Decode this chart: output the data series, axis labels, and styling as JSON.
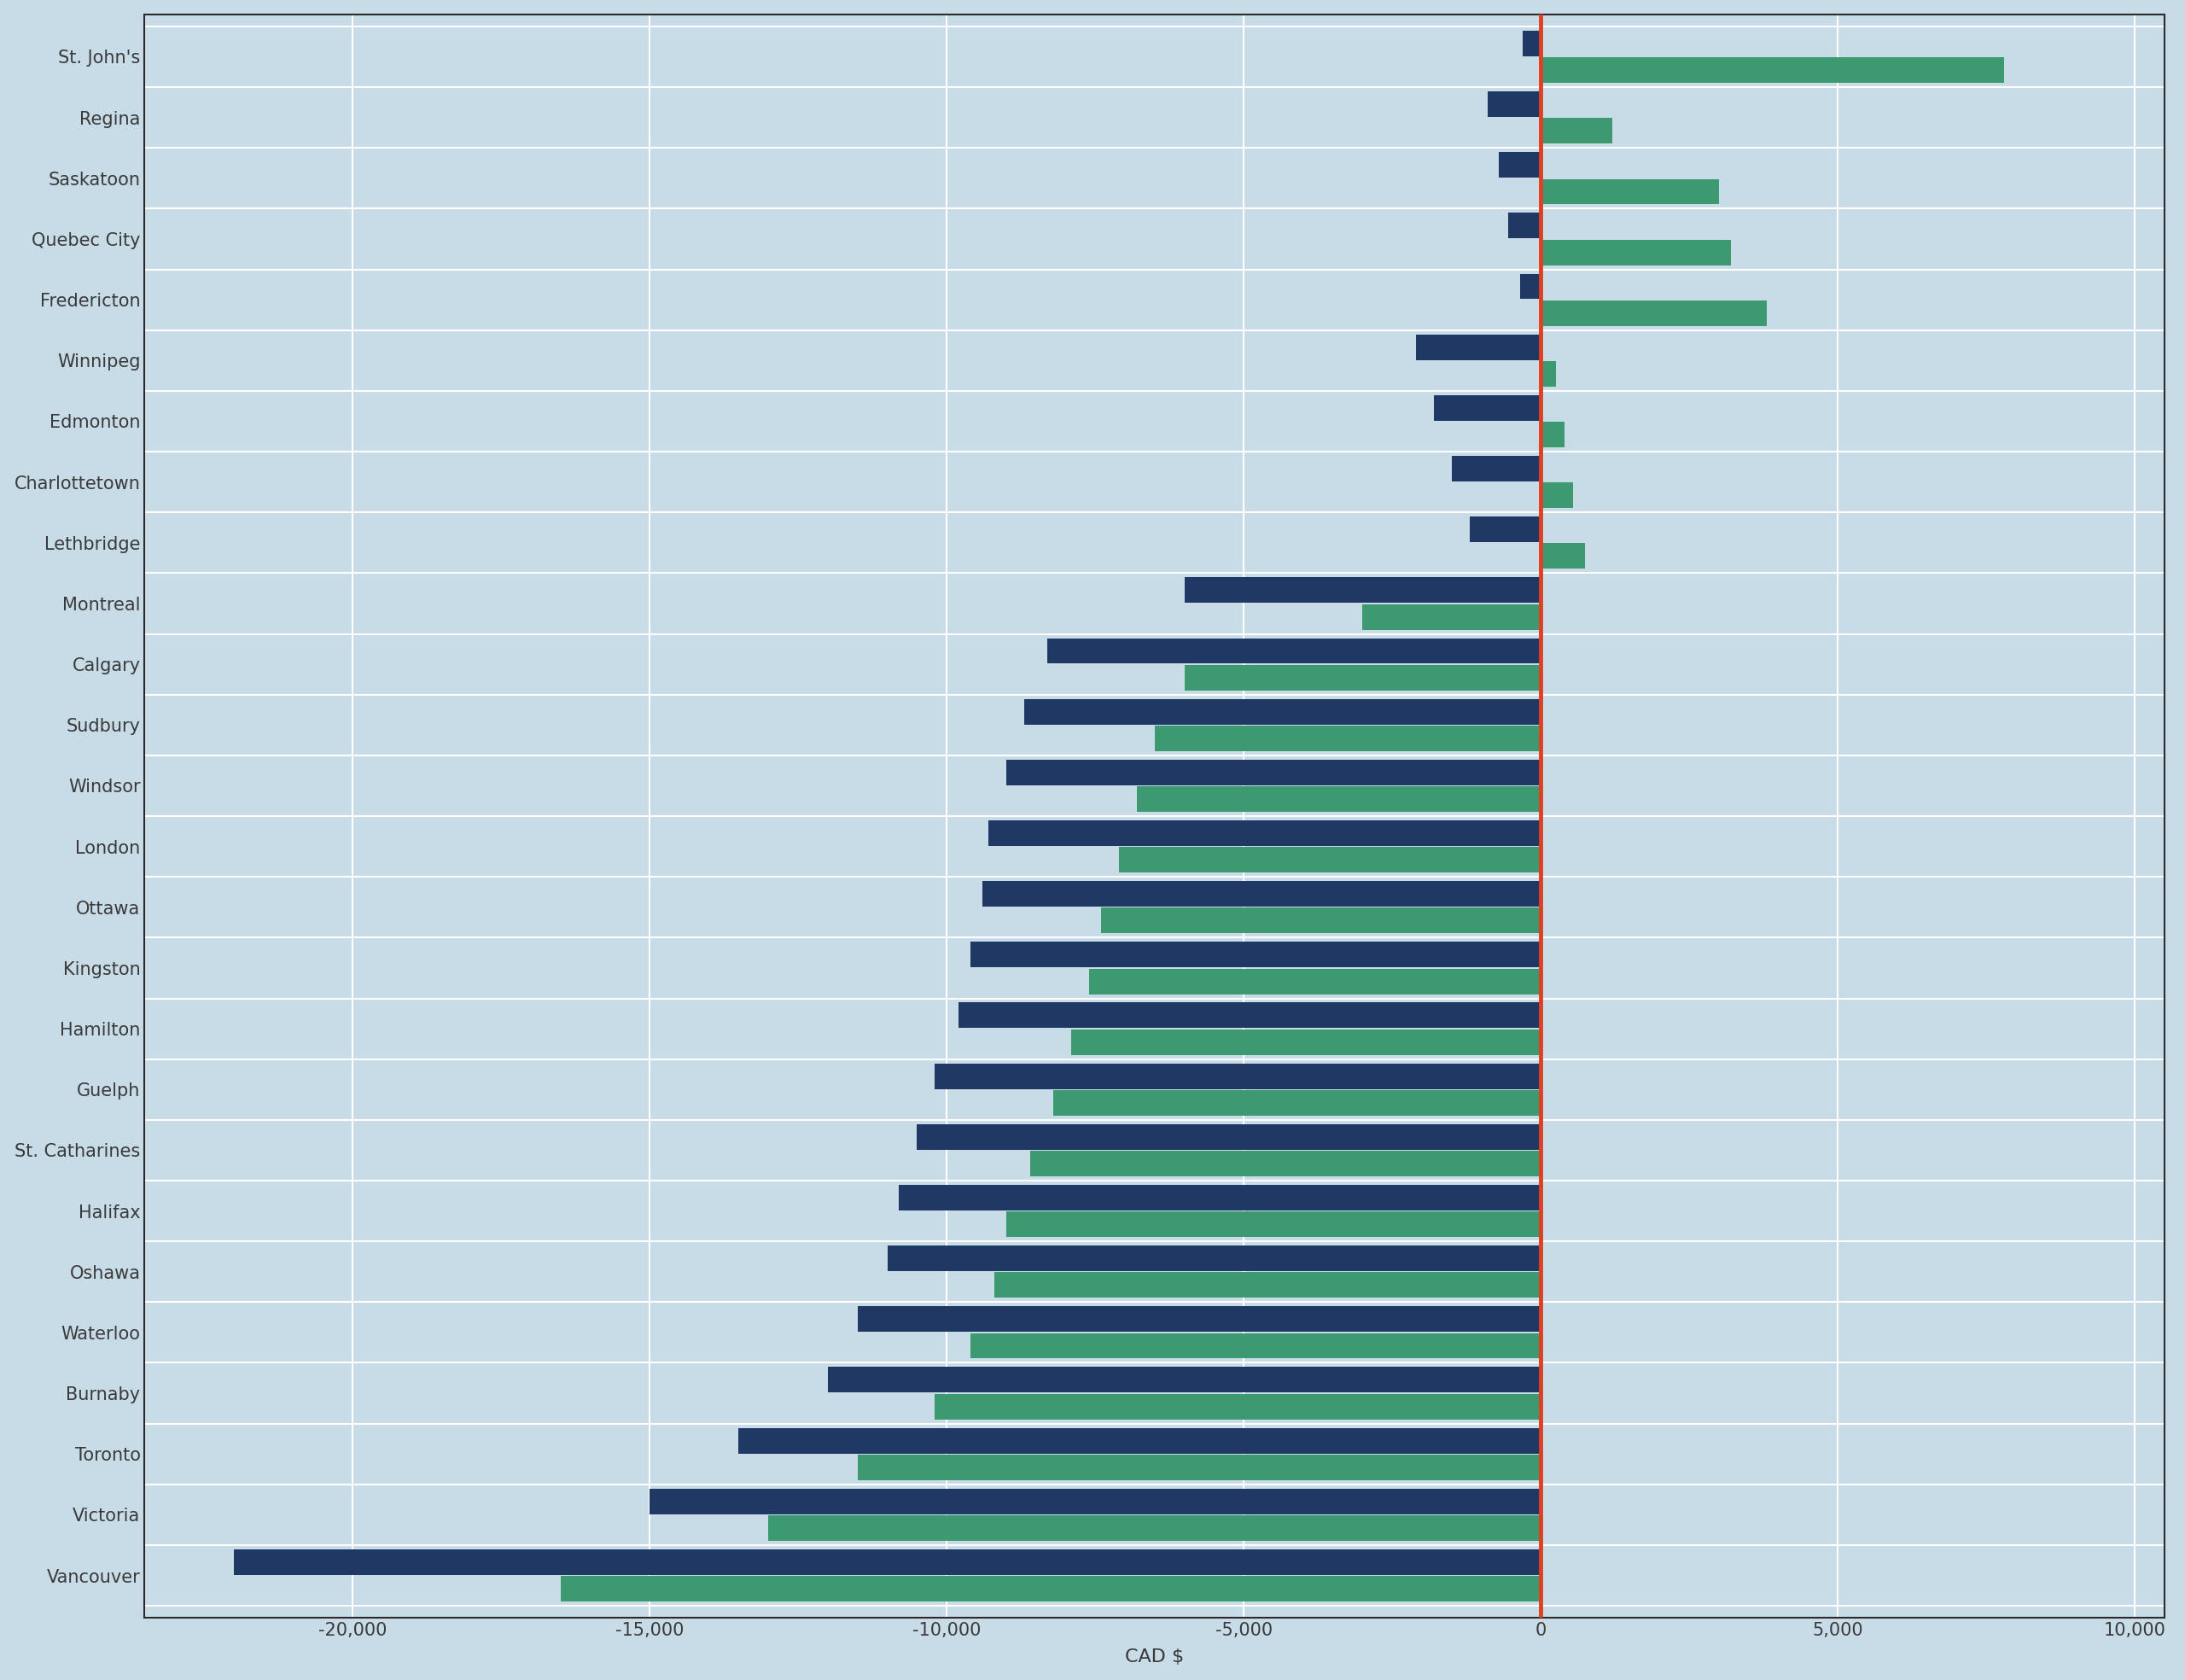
{
  "cities": [
    "Vancouver",
    "Victoria",
    "Toronto",
    "Burnaby",
    "Waterloo",
    "Oshawa",
    "Halifax",
    "St. Catharines",
    "Guelph",
    "Hamilton",
    "Kingston",
    "Ottawa",
    "London",
    "Windsor",
    "Sudbury",
    "Calgary",
    "Montreal",
    "Lethbridge",
    "Charlottetown",
    "Edmonton",
    "Winnipeg",
    "Fredericton",
    "Quebec City",
    "Saskatoon",
    "Regina",
    "St. John's"
  ],
  "dark_navy_values": [
    -22000,
    -15000,
    -13500,
    -12000,
    -11500,
    -11000,
    -10800,
    -10500,
    -10200,
    -9800,
    -9600,
    -9400,
    -9300,
    -9000,
    -8700,
    -8300,
    -6000,
    -1200,
    -1500,
    -1800,
    -2100,
    -350,
    -550,
    -700,
    -900,
    -300
  ],
  "teal_values": [
    -16500,
    -13000,
    -11500,
    -10200,
    -9600,
    -9200,
    -9000,
    -8600,
    -8200,
    -7900,
    -7600,
    -7400,
    -7100,
    -6800,
    -6500,
    -6000,
    -3000,
    750,
    550,
    400,
    250,
    3800,
    3200,
    3000,
    1200,
    7800
  ],
  "dark_navy_color": "#1f3864",
  "teal_color": "#3d9970",
  "background_color": "#c8dce8",
  "grid_color": "#e8f0f5",
  "vline_color": "#e04020",
  "xlabel": "CAD $",
  "xlim": [
    -23500,
    10500
  ],
  "xticks": [
    -20000,
    -15000,
    -10000,
    -5000,
    0,
    5000,
    10000
  ],
  "xtick_labels": [
    "-20,000",
    "-15,000",
    "-10,000",
    "-5,000",
    "0",
    "5,000",
    "10,000"
  ],
  "label_fontsize": 16,
  "tick_fontsize": 15
}
